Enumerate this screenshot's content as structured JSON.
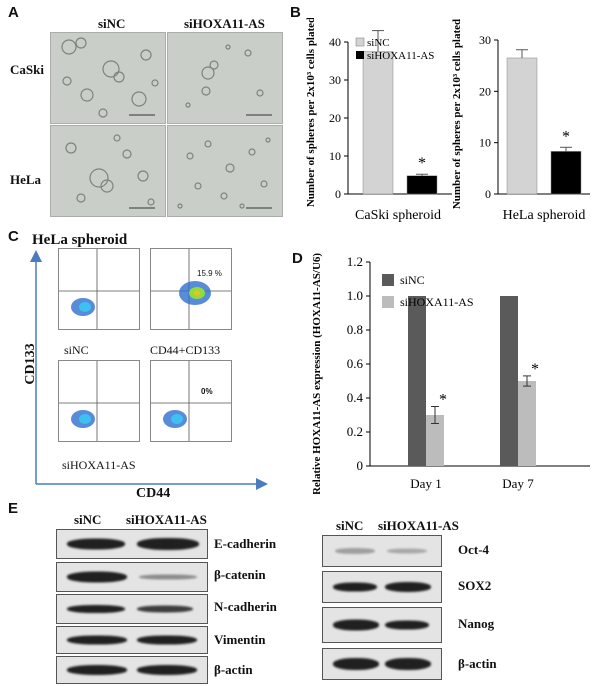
{
  "panelA": {
    "letter": "A",
    "cols": [
      "siNC",
      "siHOXA11-AS"
    ],
    "rows": [
      "CaSki",
      "HeLa"
    ]
  },
  "panelB": {
    "letter": "B",
    "legend": [
      "siNC",
      "siHOXA11-AS"
    ],
    "ylabel": "Number of spheres per 2x10³ cells plated",
    "star": "*"
  },
  "panelC": {
    "letter": "C",
    "title": "HeLa spheroid",
    "xaxis": "CD44",
    "yaxis": "CD133",
    "labels": {
      "sinc": "siNC",
      "si": "siHOXA11-AS",
      "marker": "CD44+CD133"
    },
    "percents": [
      "15.9 %",
      "0%"
    ]
  },
  "panelD": {
    "letter": "D",
    "legend": [
      "siNC",
      "siHOXA11-AS"
    ],
    "ylabel": "Relative HOXA11-AS expression (HOXA11-AS/U6)",
    "star": "*"
  },
  "panelE": {
    "letter": "E",
    "cols": [
      "siNC",
      "siHOXA11-AS"
    ],
    "left": [
      "E-cadherin",
      "β-catenin",
      "N-cadherin",
      "Vimentin",
      "β-actin"
    ],
    "right": [
      "Oct-4",
      "SOX2",
      "Nanog",
      "β-actin"
    ]
  },
  "chart_data": [
    {
      "type": "bar",
      "categories": [
        "siNC",
        "siHOXA11-AS"
      ],
      "values": [
        37.5,
        4.8
      ],
      "errors": [
        5.5,
        0.4
      ],
      "xlabel": "CaSki spheroid",
      "ylim": [
        0,
        40
      ],
      "yticks": [
        "0",
        "10",
        "20",
        "30",
        "40"
      ],
      "colors": [
        "#d3d3d3",
        "#000000"
      ]
    },
    {
      "type": "bar",
      "categories": [
        "siNC",
        "siHOXA11-AS"
      ],
      "values": [
        26.5,
        8.3
      ],
      "errors": [
        1.6,
        0.8
      ],
      "xlabel": "HeLa spheroid",
      "ylim": [
        0,
        30
      ],
      "yticks": [
        "0",
        "10",
        "20",
        "30"
      ],
      "colors": [
        "#d3d3d3",
        "#000000"
      ]
    },
    {
      "type": "bar",
      "categories": [
        "Day 1",
        "Day 7"
      ],
      "series": [
        {
          "name": "siNC",
          "values": [
            1.0,
            1.0
          ],
          "errors": [
            0,
            0
          ],
          "color": "#5a5a5a"
        },
        {
          "name": "siHOXA11-AS",
          "values": [
            0.3,
            0.5
          ],
          "errors": [
            0.05,
            0.03
          ],
          "color": "#bcbcbc"
        }
      ],
      "ylim": [
        0,
        1.2
      ],
      "yticks": [
        "0",
        "0.2",
        "0.4",
        "0.6",
        "0.8",
        "1.0",
        "1.2"
      ]
    }
  ]
}
